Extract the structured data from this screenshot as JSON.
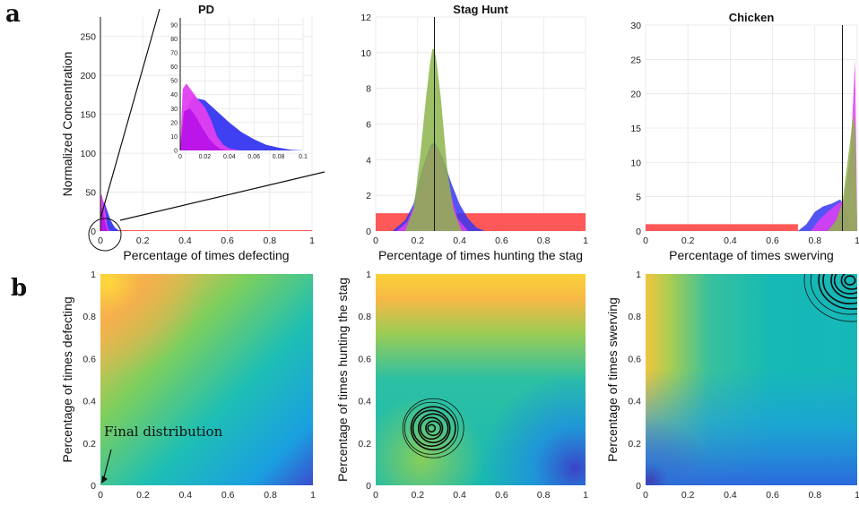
{
  "panel_labels": {
    "a": "a",
    "b": "b"
  },
  "chart_data": [
    {
      "id": "pd-hist",
      "type": "area",
      "title": "PD",
      "xlabel": "Percentage of times defecting",
      "ylabel": "Normalized Concentration",
      "xlim": [
        0,
        1
      ],
      "ylim": [
        0,
        275
      ],
      "xticks": [
        0,
        0.2,
        0.4,
        0.6,
        0.8,
        1
      ],
      "xtick_labels": [
        "0",
        "0.2",
        "0.4",
        "0.6",
        "0.8",
        "1"
      ],
      "yticks": [
        0,
        50,
        100,
        150,
        200,
        250
      ],
      "ytick_labels": [
        "0",
        "50",
        "100",
        "150",
        "200",
        "250"
      ],
      "vline": 0,
      "grid": true,
      "series": [
        {
          "color": "#ff3b3b",
          "x": [
            0,
            1
          ],
          "y": [
            1,
            1
          ]
        },
        {
          "color": "#3636f2",
          "x": [
            0,
            0.005,
            0.01,
            0.02,
            0.03,
            0.04,
            0.05,
            0.06,
            0.07,
            0.08,
            0.09,
            0.1
          ],
          "y": [
            0,
            30,
            38,
            36,
            28,
            20,
            13,
            8,
            4,
            2,
            0.5,
            0
          ]
        },
        {
          "color": "#e23ef0",
          "x": [
            0,
            0.002,
            0.005,
            0.01,
            0.015,
            0.02,
            0.025,
            0.03,
            0.035,
            0.04,
            0.045,
            0.05
          ],
          "y": [
            0,
            44,
            48,
            42,
            36,
            31,
            22,
            10,
            4,
            1.5,
            0.5,
            0
          ]
        },
        {
          "color": "#bb13e8",
          "x": [
            0,
            0.003,
            0.008,
            0.013,
            0.018,
            0.023,
            0.028,
            0.033,
            0.038
          ],
          "y": [
            0,
            28,
            30,
            24,
            16,
            9,
            4,
            1,
            0
          ]
        }
      ],
      "inset": {
        "xlim": [
          0,
          0.1
        ],
        "ylim": [
          0,
          95
        ],
        "xticks": [
          0,
          0.02,
          0.04,
          0.06,
          0.08,
          0.1
        ],
        "xtick_labels": [
          "0",
          "0.02",
          "0.04",
          "0.06",
          "0.08",
          "0.1"
        ],
        "yticks": [
          0,
          10,
          20,
          30,
          40,
          50,
          60,
          70,
          80,
          90
        ],
        "ytick_labels": [
          "0",
          "10",
          "20",
          "30",
          "40",
          "50",
          "60",
          "70",
          "80",
          "90"
        ]
      }
    },
    {
      "id": "stag-hist",
      "type": "area",
      "title": "Stag Hunt",
      "xlabel": "Percentage of times hunting the stag",
      "ylabel": "",
      "xlim": [
        0,
        1
      ],
      "ylim": [
        0,
        12
      ],
      "xticks": [
        0,
        0.2,
        0.4,
        0.6,
        0.8,
        1
      ],
      "xtick_labels": [
        "0",
        "0.2",
        "0.4",
        "0.6",
        "0.8",
        "1"
      ],
      "yticks": [
        0,
        2,
        4,
        6,
        8,
        10,
        12
      ],
      "ytick_labels": [
        "0",
        "2",
        "4",
        "6",
        "8",
        "10",
        "12"
      ],
      "vline": 0.28,
      "grid": true,
      "series": [
        {
          "color": "#ff3b3b",
          "x": [
            0,
            1
          ],
          "y": [
            1,
            1
          ]
        },
        {
          "color": "#3636f2",
          "x": [
            0.08,
            0.14,
            0.18,
            0.22,
            0.26,
            0.28,
            0.32,
            0.36,
            0.4,
            0.44,
            0.48,
            0.52
          ],
          "y": [
            0,
            0.6,
            1.5,
            3.4,
            4.8,
            5.0,
            4.1,
            2.7,
            1.5,
            0.7,
            0.2,
            0
          ]
        },
        {
          "color": "#e23ef0",
          "x": [
            0.1,
            0.15,
            0.19,
            0.23,
            0.26,
            0.28,
            0.31,
            0.35,
            0.39,
            0.44
          ],
          "y": [
            0,
            0.5,
            1.6,
            3.6,
            4.6,
            4.8,
            4.2,
            2.4,
            0.7,
            0
          ]
        },
        {
          "color": "#8cb44b",
          "x": [
            0.14,
            0.18,
            0.21,
            0.24,
            0.26,
            0.27,
            0.28,
            0.29,
            0.31,
            0.34,
            0.37,
            0.41
          ],
          "y": [
            0,
            1.2,
            4.0,
            7.5,
            9.5,
            10.2,
            10.2,
            9.5,
            7.5,
            3.6,
            1.2,
            0
          ]
        }
      ]
    },
    {
      "id": "chicken-hist",
      "type": "area",
      "title": "Chicken",
      "xlabel": "Percentage of times swerving",
      "ylabel": "",
      "xlim": [
        0,
        1
      ],
      "ylim": [
        0,
        30
      ],
      "xticks": [
        0,
        0.2,
        0.4,
        0.6,
        0.8,
        1
      ],
      "xtick_labels": [
        "0",
        "0.2",
        "0.4",
        "0.6",
        "0.8",
        "1"
      ],
      "yticks": [
        0,
        5,
        10,
        15,
        20,
        25,
        30
      ],
      "ytick_labels": [
        "0",
        "5",
        "10",
        "15",
        "20",
        "25",
        "30"
      ],
      "vline": 0.93,
      "grid": true,
      "series": [
        {
          "color": "#ff3b3b",
          "x": [
            0,
            0.72
          ],
          "y": [
            1,
            1
          ]
        },
        {
          "color": "#3636f2",
          "x": [
            0.72,
            0.76,
            0.8,
            0.84,
            0.88,
            0.92,
            0.95,
            0.97
          ],
          "y": [
            0,
            1.0,
            2.8,
            3.6,
            4.0,
            4.6,
            3.0,
            0
          ]
        },
        {
          "color": "#e23ef0",
          "x": [
            0.78,
            0.82,
            0.86,
            0.9,
            0.94,
            0.97,
            0.99,
            1.0
          ],
          "y": [
            0,
            1.6,
            2.8,
            3.8,
            4.6,
            12.0,
            25.0,
            0
          ]
        },
        {
          "color": "#8cb44b",
          "x": [
            0.86,
            0.9,
            0.93,
            0.95,
            0.97,
            0.98,
            0.99,
            1.0
          ],
          "y": [
            0,
            1.5,
            4.2,
            9.0,
            14.0,
            17.0,
            15.0,
            0
          ]
        }
      ]
    },
    {
      "id": "pd-map",
      "type": "heatmap",
      "title": "",
      "xlabel": "",
      "ylabel": "Percentage of times defecting",
      "xlim": [
        0,
        1
      ],
      "ylim": [
        0,
        1
      ],
      "xticks": [
        0,
        0.2,
        0.4,
        0.6,
        0.8,
        1
      ],
      "xtick_labels": [
        "0",
        "0.2",
        "0.4",
        "0.6",
        "0.8",
        "1"
      ],
      "yticks": [
        0,
        0.2,
        0.4,
        0.6,
        0.8,
        1
      ],
      "ytick_labels": [
        "0",
        "0.2",
        "0.4",
        "0.6",
        "0.8",
        "1"
      ],
      "colormap": "parula",
      "annotation": {
        "text": "Final distribution",
        "target": [
          0,
          0
        ]
      }
    },
    {
      "id": "stag-map",
      "type": "heatmap",
      "title": "",
      "xlabel": "",
      "ylabel": "Percentage of times hunting the stag",
      "xlim": [
        0,
        1
      ],
      "ylim": [
        0,
        1
      ],
      "xticks": [
        0,
        0.2,
        0.4,
        0.6,
        0.8,
        1
      ],
      "xtick_labels": [
        "0",
        "0.2",
        "0.4",
        "0.6",
        "0.8",
        "1"
      ],
      "yticks": [
        0,
        0.2,
        0.4,
        0.6,
        0.8,
        1
      ],
      "ytick_labels": [
        "0",
        "0.2",
        "0.4",
        "0.6",
        "0.8",
        "1"
      ],
      "colormap": "parula",
      "contour_center": [
        0.27,
        0.27
      ]
    },
    {
      "id": "chicken-map",
      "type": "heatmap",
      "title": "",
      "xlabel": "",
      "ylabel": "Percentage of times swerving",
      "xlim": [
        0,
        1
      ],
      "ylim": [
        0,
        1
      ],
      "xticks": [
        0,
        0.2,
        0.4,
        0.6,
        0.8,
        1
      ],
      "xtick_labels": [
        "0",
        "0.2",
        "0.4",
        "0.6",
        "0.8",
        "1"
      ],
      "yticks": [
        0,
        0.2,
        0.4,
        0.6,
        0.8,
        1
      ],
      "ytick_labels": [
        "0",
        "0.2",
        "0.4",
        "0.6",
        "0.8",
        "1"
      ],
      "colormap": "parula",
      "contour_center": [
        0.97,
        0.97
      ]
    }
  ]
}
